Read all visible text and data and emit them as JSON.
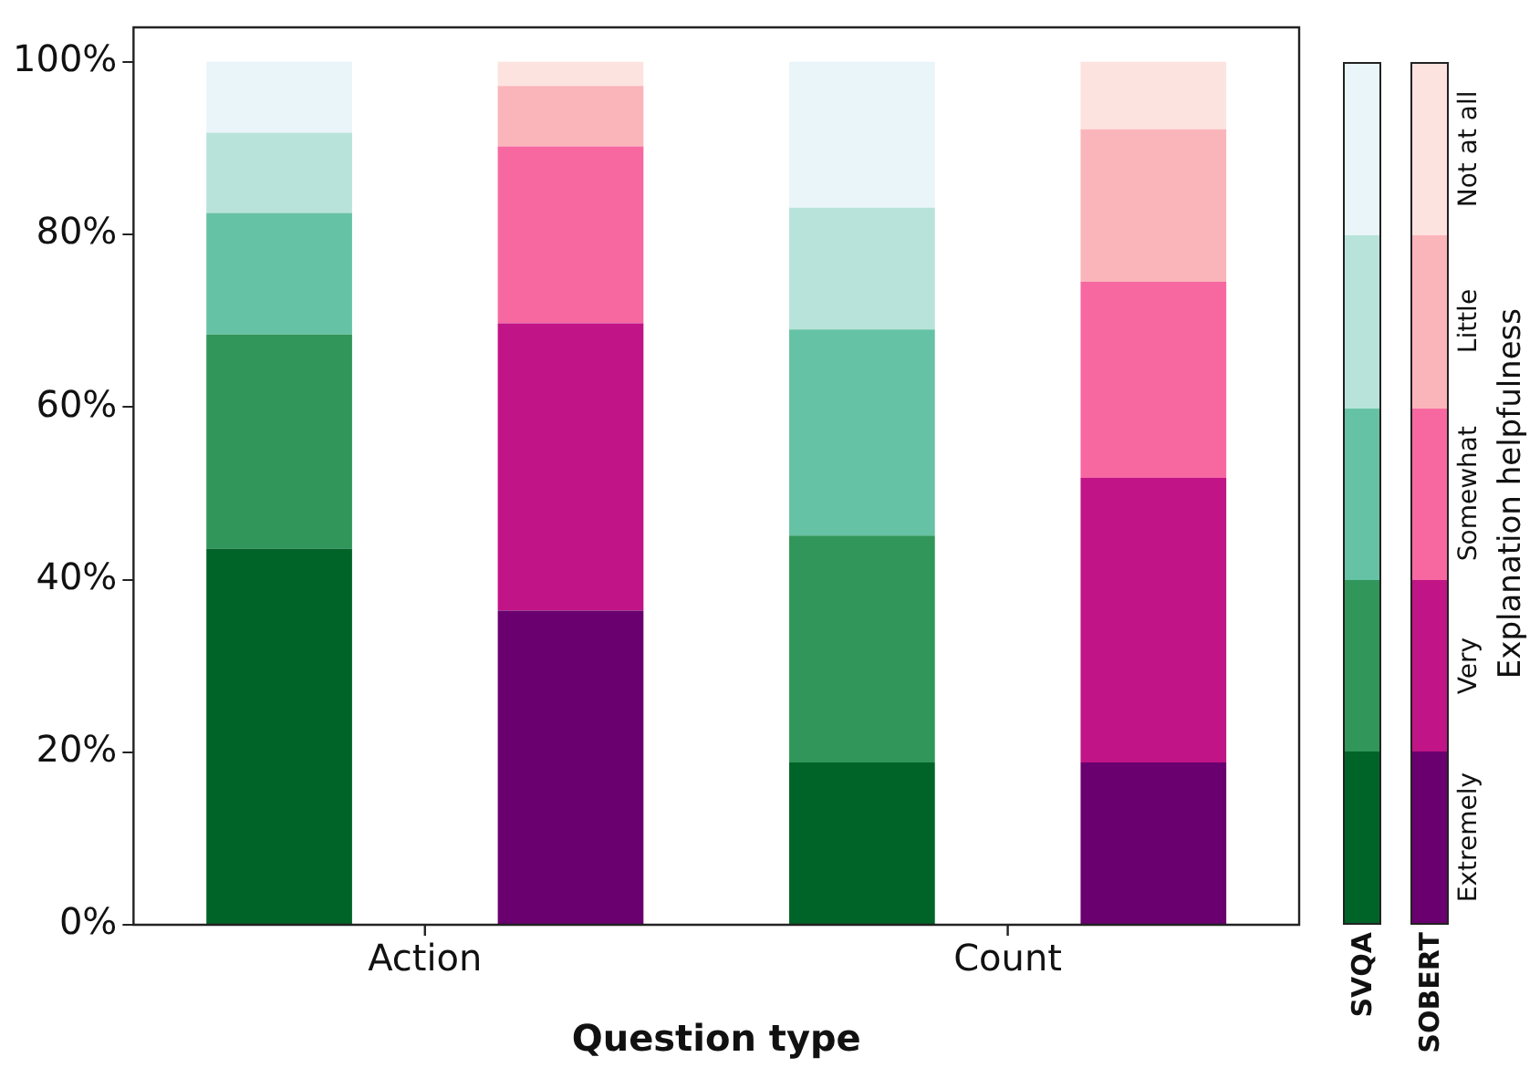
{
  "chart_data": {
    "type": "bar",
    "stacked": true,
    "xlabel": "Question type",
    "legend_title": "Explanation helpfulness",
    "legend": "right",
    "categories": [
      "Action",
      null,
      "Count",
      null
    ],
    "annotations": [
      "SVQA",
      "SOBERT"
    ],
    "series": [
      {
        "name": "Extremely",
        "colors": [
          "#006428",
          "#6a006f",
          "#006428",
          "#6a006f"
        ],
        "values": [
          43.6,
          36.4,
          18.8,
          18.8
        ]
      },
      {
        "name": "Very",
        "colors": [
          "#31965a",
          "#c11486",
          "#31965a",
          "#c11486"
        ],
        "values": [
          24.8,
          33.3,
          26.3,
          33.0
        ]
      },
      {
        "name": "Somewhat",
        "colors": [
          "#66c2a4",
          "#f768a1",
          "#66c2a4",
          "#f768a1"
        ],
        "values": [
          14.1,
          20.5,
          23.9,
          22.7
        ]
      },
      {
        "name": "Little",
        "colors": [
          "#b8e3da",
          "#fab5ba",
          "#b8e3da",
          "#fab5ba"
        ],
        "values": [
          9.3,
          7.0,
          14.1,
          17.7
        ]
      },
      {
        "name": "Not at all",
        "colors": [
          "#e9f5f9",
          "#fde3df",
          "#e9f5f9",
          "#fde3df"
        ],
        "values": [
          8.2,
          2.8,
          16.9,
          7.8
        ]
      }
    ],
    "ylim": [
      0,
      104
    ],
    "yticks": [
      {
        "value": 0,
        "label": "0%"
      },
      {
        "value": 20,
        "label": "20%"
      },
      {
        "value": 40,
        "label": "40%"
      },
      {
        "value": 60,
        "label": "60%"
      },
      {
        "value": 80,
        "label": "80%"
      },
      {
        "value": 100,
        "label": "100%"
      }
    ],
    "grid": false
  }
}
